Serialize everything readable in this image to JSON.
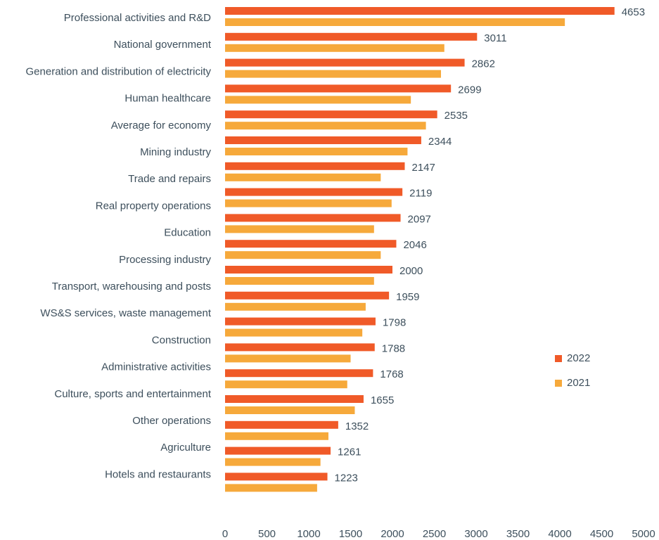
{
  "chart_data": {
    "type": "hbar",
    "categories": [
      "Professional activities and R&D",
      "National government",
      "Generation and distribution of electricity",
      "Human healthcare",
      "Average for economy",
      "Mining industry",
      "Trade and repairs",
      "Real property operations",
      "Education",
      "Processing industry",
      null,
      "Transport, warehousing and posts",
      "WS&S services, waste management",
      "Construction",
      "Administrative activities",
      "Culture, sports and entertainment",
      "Other operations",
      "Agriculture",
      "Hotels and restaurants"
    ],
    "series": [
      {
        "name": "2022",
        "color": "#f05a28",
        "values": [
          4653,
          3011,
          2862,
          2699,
          2535,
          2344,
          2147,
          2119,
          2097,
          2046,
          2000,
          1959,
          1798,
          1788,
          1768,
          1655,
          1352,
          1261,
          1223
        ]
      },
      {
        "name": "2021",
        "color": "#f6a93b",
        "values": [
          4060,
          2620,
          2580,
          2220,
          2400,
          2180,
          1860,
          1990,
          1780,
          1860,
          1780,
          1680,
          1640,
          1500,
          1460,
          1550,
          1235,
          1140,
          1100
        ]
      }
    ],
    "xlim": [
      0,
      5000
    ],
    "xticks": [
      0,
      500,
      1000,
      1500,
      2000,
      2500,
      3000,
      3500,
      4000,
      4500,
      5000
    ],
    "value_labels_series": 0,
    "legend": "right",
    "grid": false
  }
}
